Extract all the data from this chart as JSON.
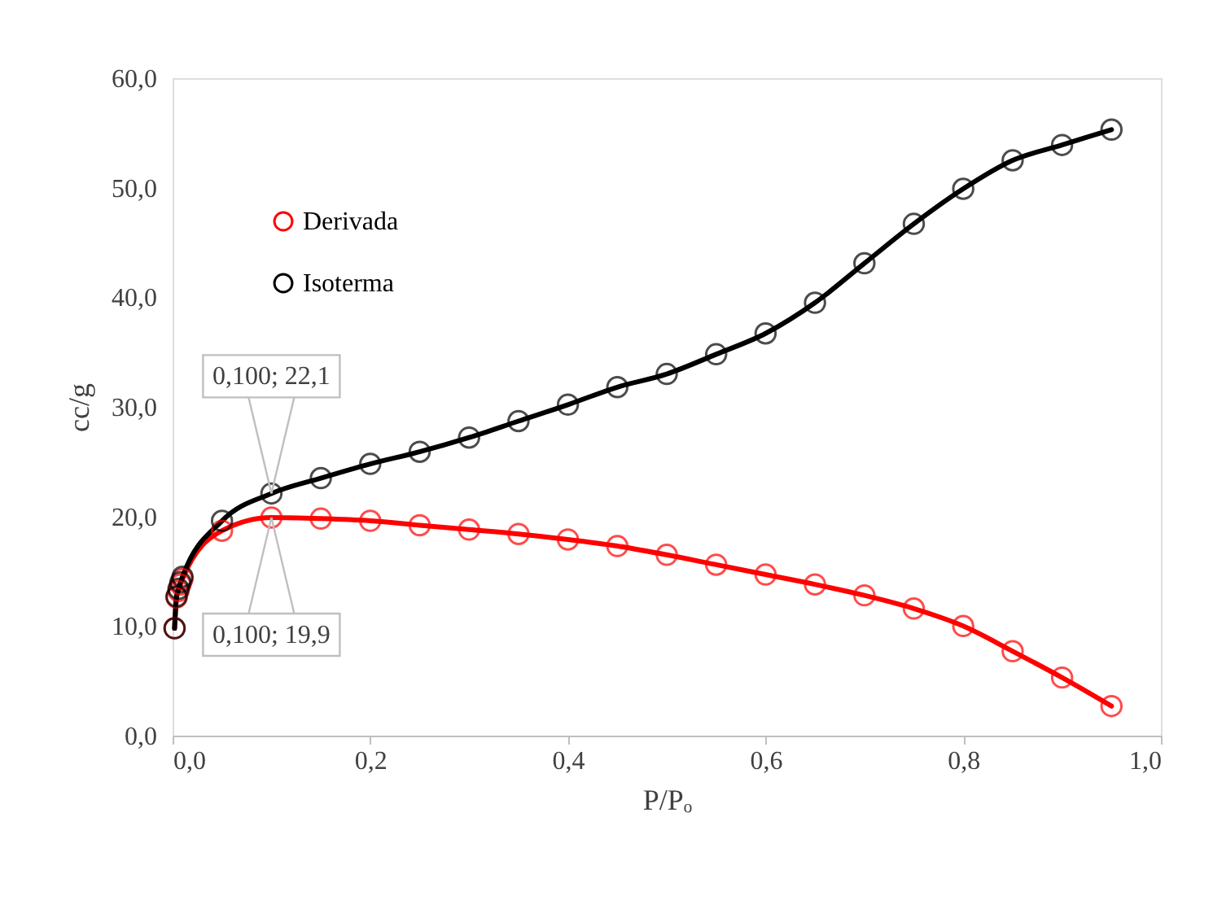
{
  "chart_data": {
    "type": "line",
    "xlabel": "P/Pₒ",
    "ylabel": "cc/g",
    "x": [
      0.002,
      0.004,
      0.006,
      0.008,
      0.01,
      0.05,
      0.1,
      0.15,
      0.2,
      0.25,
      0.3,
      0.35,
      0.4,
      0.45,
      0.5,
      0.55,
      0.6,
      0.65,
      0.7,
      0.75,
      0.8,
      0.85,
      0.9,
      0.95
    ],
    "series": [
      {
        "name": "Derivada",
        "color": "#ff0000",
        "values": [
          9.8,
          12.6,
          13.2,
          13.8,
          14.3,
          18.7,
          19.9,
          19.8,
          19.6,
          19.2,
          18.8,
          18.4,
          17.9,
          17.3,
          16.5,
          15.6,
          14.7,
          13.8,
          12.8,
          11.6,
          10.0,
          7.7,
          5.3,
          2.7
        ]
      },
      {
        "name": "Isoterma",
        "color": "#000000",
        "values": [
          9.8,
          12.7,
          13.4,
          14.0,
          14.5,
          19.6,
          22.1,
          23.5,
          24.8,
          25.9,
          27.2,
          28.7,
          30.2,
          31.8,
          33.0,
          34.8,
          36.7,
          39.5,
          43.1,
          46.7,
          49.9,
          52.5,
          53.9,
          55.3
        ]
      }
    ],
    "xlim": [
      0,
      1.0
    ],
    "xticks": [
      {
        "value": 0,
        "label": "0,0"
      },
      {
        "value": 0.2,
        "label": "0,2"
      },
      {
        "value": 0.4,
        "label": "0,4"
      },
      {
        "value": 0.6,
        "label": "0,6"
      },
      {
        "value": 0.8,
        "label": "0,8"
      },
      {
        "value": 1.0,
        "label": "1,0"
      }
    ],
    "ylim": [
      0,
      60
    ],
    "yticks": [
      {
        "value": 0,
        "label": "0,0"
      },
      {
        "value": 10,
        "label": "10,0"
      },
      {
        "value": 20,
        "label": "20,0"
      },
      {
        "value": 30,
        "label": "30,0"
      },
      {
        "value": 40,
        "label": "40,0"
      },
      {
        "value": 50,
        "label": "50,0"
      },
      {
        "value": 60,
        "label": "60,0"
      }
    ],
    "annotations": [
      {
        "text": "0,100; 22,1",
        "x": 0.1,
        "y": 22.1
      },
      {
        "text": "0,100; 19,9",
        "x": 0.1,
        "y": 19.9
      }
    ],
    "marker": "circle",
    "line_style": "solid",
    "legend": "top left",
    "grid": false
  }
}
